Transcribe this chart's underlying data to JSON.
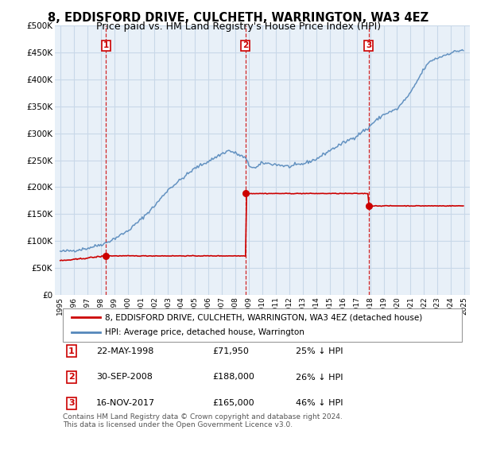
{
  "title": "8, EDDISFORD DRIVE, CULCHETH, WARRINGTON, WA3 4EZ",
  "subtitle": "Price paid vs. HM Land Registry's House Price Index (HPI)",
  "ylim": [
    0,
    500000
  ],
  "yticks": [
    0,
    50000,
    100000,
    150000,
    200000,
    250000,
    300000,
    350000,
    400000,
    450000,
    500000
  ],
  "ytick_labels": [
    "£0",
    "£50K",
    "£100K",
    "£150K",
    "£200K",
    "£250K",
    "£300K",
    "£350K",
    "£400K",
    "£450K",
    "£500K"
  ],
  "xlim": [
    1994.6,
    2025.4
  ],
  "xtick_years": [
    1995,
    1996,
    1997,
    1998,
    1999,
    2000,
    2001,
    2002,
    2003,
    2004,
    2005,
    2006,
    2007,
    2008,
    2009,
    2010,
    2011,
    2012,
    2013,
    2014,
    2015,
    2016,
    2017,
    2018,
    2019,
    2020,
    2021,
    2022,
    2023,
    2024,
    2025
  ],
  "background_color": "#ffffff",
  "chart_bg_color": "#e8f0f8",
  "grid_color": "#c8d8e8",
  "hpi_color": "#5588bb",
  "price_color": "#cc0000",
  "vline_color": "#cc0000",
  "hpi_anchors_x": [
    1995.0,
    1996.0,
    1997.0,
    1998.0,
    1998.39,
    1999.0,
    2000.0,
    2001.0,
    2002.0,
    2003.0,
    2004.0,
    2005.0,
    2006.0,
    2007.0,
    2007.5,
    2008.0,
    2008.75,
    2009.0,
    2009.5,
    2010.0,
    2011.0,
    2012.0,
    2013.0,
    2014.0,
    2015.0,
    2016.0,
    2017.0,
    2017.5,
    2017.88,
    2018.0,
    2019.0,
    2020.0,
    2021.0,
    2022.0,
    2022.5,
    2023.0,
    2024.0,
    2024.83
  ],
  "hpi_anchors_y": [
    80000,
    82000,
    86000,
    93000,
    95933,
    104000,
    118000,
    140000,
    165000,
    195000,
    215000,
    235000,
    248000,
    262000,
    268000,
    263000,
    254000,
    240000,
    235000,
    245000,
    242000,
    238000,
    243000,
    252000,
    268000,
    282000,
    295000,
    305000,
    308000,
    315000,
    335000,
    345000,
    375000,
    420000,
    435000,
    440000,
    450000,
    455000
  ],
  "red_anchors_x": [
    1995.0,
    1996.0,
    1997.0,
    1998.39,
    2008.75,
    2017.88,
    2024.83
  ],
  "red_anchors_y": [
    63000,
    65000,
    68000,
    71950,
    188000,
    165000,
    165000
  ],
  "transaction_markers": [
    {
      "label": "1",
      "year": 1998.39,
      "price": 71950
    },
    {
      "label": "2",
      "year": 2008.75,
      "price": 188000
    },
    {
      "label": "3",
      "year": 2017.88,
      "price": 165000
    }
  ],
  "legend_entries": [
    "8, EDDISFORD DRIVE, CULCHETH, WARRINGTON, WA3 4EZ (detached house)",
    "HPI: Average price, detached house, Warrington"
  ],
  "table_rows": [
    {
      "num": "1",
      "date": "22-MAY-1998",
      "price": "£71,950",
      "note": "25% ↓ HPI"
    },
    {
      "num": "2",
      "date": "30-SEP-2008",
      "price": "£188,000",
      "note": "26% ↓ HPI"
    },
    {
      "num": "3",
      "date": "16-NOV-2017",
      "price": "£165,000",
      "note": "46% ↓ HPI"
    }
  ],
  "footnote": "Contains HM Land Registry data © Crown copyright and database right 2024.\nThis data is licensed under the Open Government Licence v3.0.",
  "title_fontsize": 10.5,
  "subtitle_fontsize": 9
}
